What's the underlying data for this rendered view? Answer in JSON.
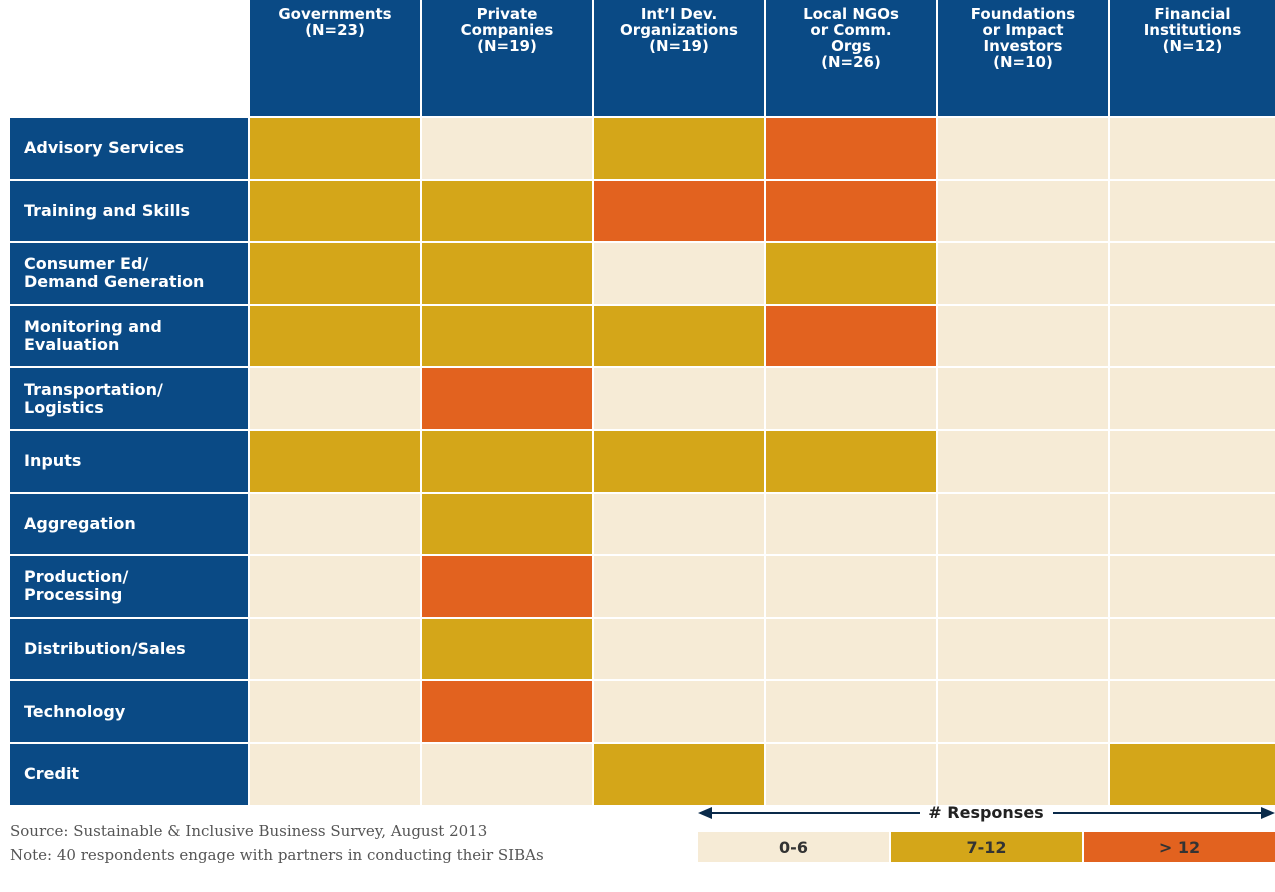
{
  "table": {
    "columns": [
      "Governments\n(N=23)",
      "Private\nCompanies\n(N=19)",
      "Int’l Dev.\nOrganizations\n(N=19)",
      "Local NGOs\nor Comm.\nOrgs\n(N=26)",
      "Foundations\nor Impact\nInvestors\n(N=10)",
      "Financial\nInstitutions\n(N=12)"
    ],
    "rows": [
      {
        "label": "Advisory Services",
        "cells": [
          "7-12",
          "0-6",
          "7-12",
          "> 12",
          "0-6",
          "0-6"
        ]
      },
      {
        "label": "Training and Skills",
        "cells": [
          "7-12",
          "7-12",
          "> 12",
          "> 12",
          "0-6",
          "0-6"
        ]
      },
      {
        "label": "Consumer Ed/\nDemand Generation",
        "cells": [
          "7-12",
          "7-12",
          "0-6",
          "7-12",
          "0-6",
          "0-6"
        ]
      },
      {
        "label": "Monitoring and\nEvaluation",
        "cells": [
          "7-12",
          "7-12",
          "7-12",
          "> 12",
          "0-6",
          "0-6"
        ]
      },
      {
        "label": "Transportation/\nLogistics",
        "cells": [
          "0-6",
          "> 12",
          "0-6",
          "0-6",
          "0-6",
          "0-6"
        ]
      },
      {
        "label": "Inputs",
        "cells": [
          "7-12",
          "7-12",
          "7-12",
          "7-12",
          "0-6",
          "0-6"
        ]
      },
      {
        "label": "Aggregation",
        "cells": [
          "0-6",
          "7-12",
          "0-6",
          "0-6",
          "0-6",
          "0-6"
        ]
      },
      {
        "label": "Production/\nProcessing",
        "cells": [
          "0-6",
          "> 12",
          "0-6",
          "0-6",
          "0-6",
          "0-6"
        ]
      },
      {
        "label": "Distribution/Sales",
        "cells": [
          "0-6",
          "7-12",
          "0-6",
          "0-6",
          "0-6",
          "0-6"
        ]
      },
      {
        "label": "Technology",
        "cells": [
          "0-6",
          "> 12",
          "0-6",
          "0-6",
          "0-6",
          "0-6"
        ]
      },
      {
        "label": "Credit",
        "cells": [
          "0-6",
          "0-6",
          "7-12",
          "0-6",
          "0-6",
          "7-12"
        ]
      }
    ]
  },
  "legend": {
    "title": "# Responses",
    "entries": [
      {
        "label": "0-6",
        "color": "#f6ebd6"
      },
      {
        "label": "7-12",
        "color": "#d4a619"
      },
      {
        "label": "> 12",
        "color": "#e2621f"
      }
    ]
  },
  "footer": {
    "source": "Source: Sustainable & Inclusive Business Survey, August 2013",
    "note": "Note: 40 respondents engage with partners in conducting their SIBAs"
  }
}
